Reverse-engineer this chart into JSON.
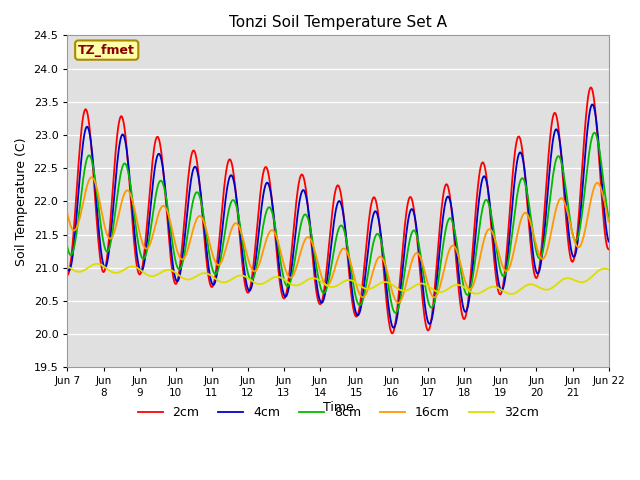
{
  "title": "Tonzi Soil Temperature Set A",
  "ylabel": "Soil Temperature (C)",
  "xlabel": "Time",
  "ylim": [
    19.5,
    24.5
  ],
  "yticks": [
    19.5,
    20.0,
    20.5,
    21.0,
    21.5,
    22.0,
    22.5,
    23.0,
    23.5,
    24.0,
    24.5
  ],
  "line_colors": [
    "#ff0000",
    "#0000cc",
    "#00bb00",
    "#ff9900",
    "#dddd00"
  ],
  "line_labels": [
    "2cm",
    "4cm",
    "8cm",
    "16cm",
    "32cm"
  ],
  "annotation_text": "TZ_fmet",
  "annotation_color": "#880000",
  "annotation_bg": "#ffffaa",
  "annotation_edge": "#aa8800",
  "bg_color": "#e0e0e0",
  "fig_bg": "#ffffff",
  "grid_color": "#ffffff",
  "start_day": 7,
  "end_day": 22
}
